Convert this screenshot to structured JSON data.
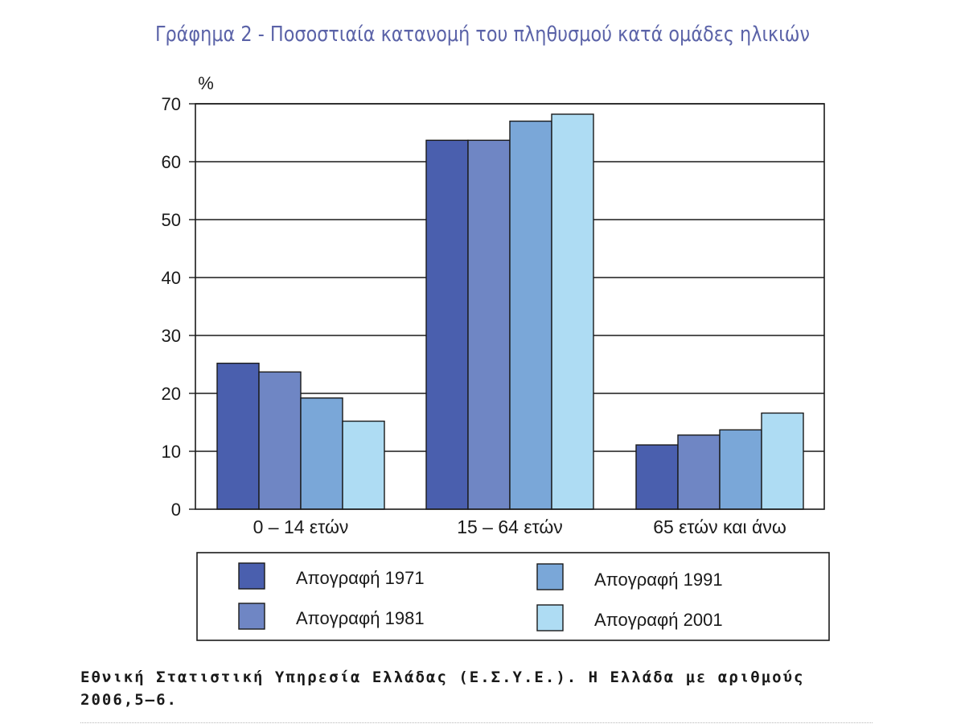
{
  "title": "Γράφημα 2 - Ποσοστιαία κατανομή του πληθυσμού κατά ομάδες ηλικιών",
  "source": "Εθνική Στατιστική Υπηρεσία Ελλάδας (Ε.Σ.Υ.Ε.). Η Ελλάδα με αριθμούς 2006,5–6.",
  "chart_data": {
    "type": "bar",
    "title": "",
    "ylabel": "%",
    "xlabel": "",
    "ylim": [
      0,
      70
    ],
    "yticks": [
      0,
      10,
      20,
      30,
      40,
      50,
      60,
      70
    ],
    "grid": true,
    "legend_position": "bottom",
    "categories": [
      "0 – 14 ετών",
      "15 – 64 ετών",
      "65 ετών και άνω"
    ],
    "series": [
      {
        "name": "Απογραφή 1971",
        "color": "#4a5fae",
        "values": [
          25.2,
          63.7,
          11.1
        ]
      },
      {
        "name": "Απογραφή 1981",
        "color": "#6f86c4",
        "values": [
          23.7,
          63.7,
          12.8
        ]
      },
      {
        "name": "Απογραφή 1991",
        "color": "#7aa7d8",
        "values": [
          19.2,
          67.0,
          13.7
        ]
      },
      {
        "name": "Απογραφή 2001",
        "color": "#aedcf3",
        "values": [
          15.2,
          68.2,
          16.6
        ]
      }
    ]
  }
}
